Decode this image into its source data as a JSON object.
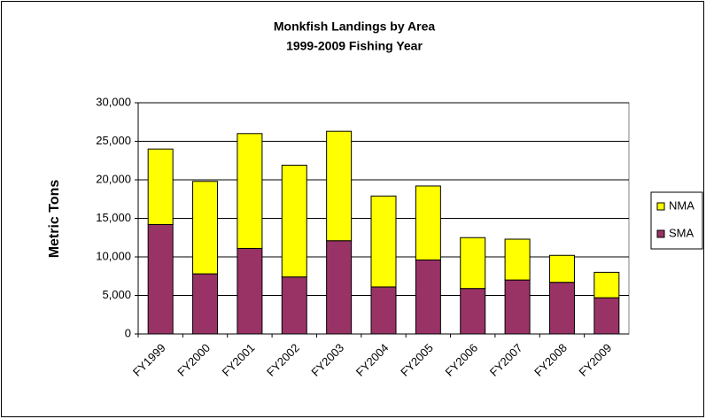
{
  "chart_data": {
    "type": "stacked_bar",
    "title": "Monkfish Landings by Area",
    "subtitle": "1999-2009 Fishing Year",
    "y_label": "Metric Tons",
    "categories": [
      "FY1999",
      "FY2000",
      "FY2001",
      "FY2002",
      "FY2003",
      "FY2004",
      "FY2005",
      "FY2006",
      "FY2007",
      "FY2008",
      "FY2009"
    ],
    "series": [
      {
        "name": "SMA",
        "color": "#993366",
        "values": [
          14200,
          7800,
          11100,
          7400,
          12100,
          6100,
          9600,
          5900,
          7000,
          6700,
          4700
        ]
      },
      {
        "name": "NMA",
        "color": "#ffff00",
        "values": [
          9800,
          12000,
          14900,
          14500,
          14200,
          11800,
          9600,
          6600,
          5300,
          3500,
          3300
        ]
      }
    ],
    "ylim": [
      0,
      30000
    ],
    "yticks": [
      0,
      {
        "value": 5000,
        "label": "5,000"
      },
      {
        "value": 10000,
        "label": "10,000"
      },
      {
        "value": 15000,
        "label": "15,000"
      },
      {
        "value": 20000,
        "label": "20,000"
      },
      {
        "value": 25000,
        "label": "25,000"
      },
      {
        "value": 30000,
        "label": "30,000"
      }
    ],
    "grid": true,
    "legend": "right"
  }
}
